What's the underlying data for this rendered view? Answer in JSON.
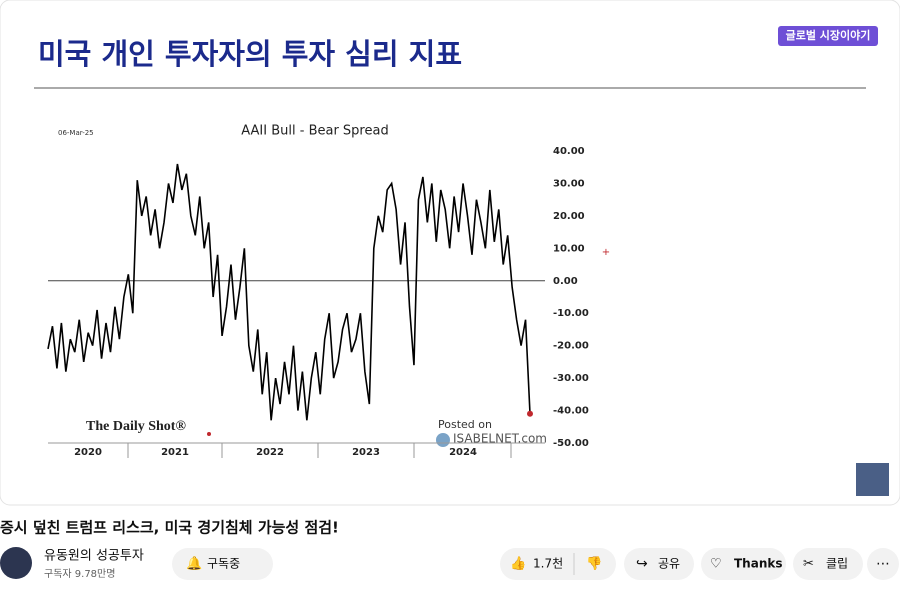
{
  "slide": {
    "title": "미국 개인 투자자의 투자 심리 지표",
    "badge": "글로벌 시장이야기"
  },
  "chart_data": {
    "type": "line",
    "title": "AAII Bull - Bear Spread",
    "date": "06-Mar-25",
    "source": "The Daily Shot®",
    "posted": "Posted on",
    "site": "ISABELNET.com",
    "color": "#000000",
    "marker_color": "#c0282d",
    "year_labels": [
      "2020",
      "2021",
      "2022",
      "2023",
      "2024"
    ],
    "values": [
      -21,
      -14,
      -27,
      -13,
      -28,
      -18,
      -22,
      -12,
      -25,
      -16,
      -20,
      -9,
      -24,
      -13,
      -22,
      -8,
      -18,
      -5,
      2,
      -10,
      31,
      20,
      26,
      14,
      22,
      10,
      18,
      30,
      24,
      36,
      28,
      33,
      20,
      14,
      26,
      10,
      18,
      -5,
      8,
      -17,
      -8,
      5,
      -12,
      -2,
      10,
      -20,
      -28,
      -15,
      -35,
      -22,
      -43,
      -30,
      -38,
      -25,
      -35,
      -20,
      -40,
      -28,
      -43,
      -30,
      -22,
      -35,
      -18,
      -10,
      -30,
      -25,
      -15,
      -10,
      -22,
      -18,
      -10,
      -28,
      -38,
      10,
      20,
      15,
      28,
      30,
      22,
      5,
      18,
      -8,
      -26,
      25,
      32,
      18,
      30,
      12,
      28,
      22,
      10,
      26,
      15,
      30,
      20,
      8,
      25,
      18,
      10,
      28,
      12,
      22,
      5,
      14,
      -2,
      -12,
      -20,
      -12,
      -41
    ],
    "ylim": [
      -50,
      40
    ],
    "yticks": [
      {
        "value": 40,
        "label": "40.00"
      },
      {
        "value": 30,
        "label": "30.00"
      },
      {
        "value": 20,
        "label": "20.00"
      },
      {
        "value": 10,
        "label": "10.00"
      },
      {
        "value": 0,
        "label": "0.00"
      },
      {
        "value": -10,
        "label": "-10.00"
      },
      {
        "value": -20,
        "label": "-20.00"
      },
      {
        "value": -30,
        "label": "-30.00"
      },
      {
        "value": -40,
        "label": "-40.00"
      },
      {
        "value": -50,
        "label": "-50.00"
      }
    ]
  },
  "video": {
    "title": "증시 덮친 트럼프 리스크, 미국 경기침체 가능성 점검!",
    "channel": "유동원의 성공투자",
    "subscribers": "구독자 9.78만명",
    "subscribe": "구독중",
    "likes": "1.7천",
    "share": "공유",
    "thanks": "Thanks",
    "clip": "클립"
  }
}
